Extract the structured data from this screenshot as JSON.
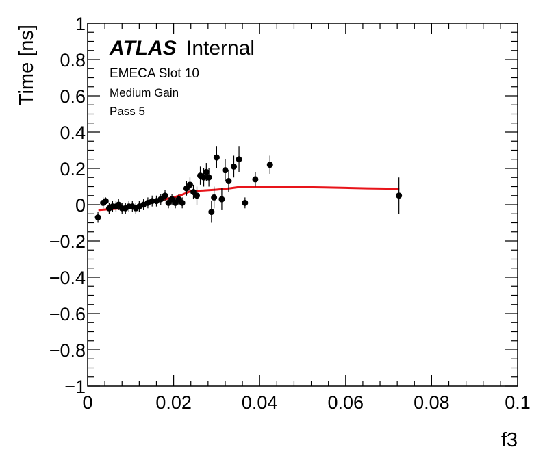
{
  "chart_data": {
    "type": "scatter",
    "title": "",
    "xlabel": "f3",
    "ylabel": "Time [ns]",
    "xlim": [
      0,
      0.1
    ],
    "ylim": [
      -1,
      1
    ],
    "x_ticks": [
      0,
      0.02,
      0.04,
      0.06,
      0.08,
      0.1
    ],
    "x_tick_labels": [
      "0",
      "0.02",
      "0.04",
      "0.06",
      "0.08",
      "0.1"
    ],
    "y_ticks": [
      -1,
      -0.8,
      -0.6,
      -0.4,
      -0.2,
      0,
      0.2,
      0.4,
      0.6,
      0.8,
      1
    ],
    "y_tick_labels": [
      "−1",
      "−0.8",
      "−0.6",
      "−0.4",
      "−0.2",
      "0",
      "0.2",
      "0.4",
      "0.6",
      "0.8",
      "1"
    ],
    "annotations": {
      "experiment": "ATLAS",
      "status": "Internal",
      "line1": "EMECA Slot 10",
      "line2": "Medium Gain",
      "line3": "Pass 5"
    },
    "colors": {
      "points": "#000000",
      "fit": "#e8141a",
      "frame": "#000000"
    },
    "series": [
      {
        "kind": "points_with_errors",
        "points": [
          {
            "x": 0.0024,
            "y": -0.07,
            "err": 0.03
          },
          {
            "x": 0.0036,
            "y": 0.01,
            "err": 0.03
          },
          {
            "x": 0.0042,
            "y": 0.02,
            "err": 0.02
          },
          {
            "x": 0.005,
            "y": -0.02,
            "err": 0.03
          },
          {
            "x": 0.0058,
            "y": -0.01,
            "err": 0.03
          },
          {
            "x": 0.0066,
            "y": -0.01,
            "err": 0.03
          },
          {
            "x": 0.0072,
            "y": 0.0,
            "err": 0.03
          },
          {
            "x": 0.008,
            "y": -0.02,
            "err": 0.03
          },
          {
            "x": 0.0088,
            "y": -0.02,
            "err": 0.03
          },
          {
            "x": 0.0096,
            "y": -0.01,
            "err": 0.03
          },
          {
            "x": 0.0104,
            "y": -0.01,
            "err": 0.03
          },
          {
            "x": 0.0112,
            "y": -0.02,
            "err": 0.03
          },
          {
            "x": 0.012,
            "y": -0.01,
            "err": 0.03
          },
          {
            "x": 0.013,
            "y": 0.0,
            "err": 0.03
          },
          {
            "x": 0.014,
            "y": 0.01,
            "err": 0.03
          },
          {
            "x": 0.015,
            "y": 0.02,
            "err": 0.03
          },
          {
            "x": 0.016,
            "y": 0.02,
            "err": 0.03
          },
          {
            "x": 0.017,
            "y": 0.03,
            "err": 0.03
          },
          {
            "x": 0.018,
            "y": 0.05,
            "err": 0.03
          },
          {
            "x": 0.0188,
            "y": 0.01,
            "err": 0.03
          },
          {
            "x": 0.0196,
            "y": 0.03,
            "err": 0.03
          },
          {
            "x": 0.0204,
            "y": 0.01,
            "err": 0.03
          },
          {
            "x": 0.0212,
            "y": 0.03,
            "err": 0.03
          },
          {
            "x": 0.022,
            "y": 0.01,
            "err": 0.03
          },
          {
            "x": 0.023,
            "y": 0.09,
            "err": 0.04
          },
          {
            "x": 0.0238,
            "y": 0.11,
            "err": 0.04
          },
          {
            "x": 0.0246,
            "y": 0.07,
            "err": 0.04
          },
          {
            "x": 0.0254,
            "y": 0.05,
            "err": 0.05
          },
          {
            "x": 0.0262,
            "y": 0.16,
            "err": 0.05
          },
          {
            "x": 0.027,
            "y": 0.15,
            "err": 0.05
          },
          {
            "x": 0.0276,
            "y": 0.18,
            "err": 0.05
          },
          {
            "x": 0.0282,
            "y": 0.15,
            "err": 0.05
          },
          {
            "x": 0.0288,
            "y": -0.04,
            "err": 0.06
          },
          {
            "x": 0.0294,
            "y": 0.04,
            "err": 0.06
          },
          {
            "x": 0.03,
            "y": 0.26,
            "err": 0.06
          },
          {
            "x": 0.0312,
            "y": 0.03,
            "err": 0.06
          },
          {
            "x": 0.032,
            "y": 0.19,
            "err": 0.06
          },
          {
            "x": 0.0328,
            "y": 0.13,
            "err": 0.06
          },
          {
            "x": 0.034,
            "y": 0.21,
            "err": 0.06
          },
          {
            "x": 0.0352,
            "y": 0.25,
            "err": 0.07
          },
          {
            "x": 0.0366,
            "y": 0.01,
            "err": 0.03
          },
          {
            "x": 0.039,
            "y": 0.14,
            "err": 0.04
          },
          {
            "x": 0.0424,
            "y": 0.22,
            "err": 0.05
          },
          {
            "x": 0.0724,
            "y": 0.05,
            "err": 0.1
          }
        ]
      },
      {
        "kind": "fit_curve",
        "points": [
          {
            "x": 0.0025,
            "y": -0.03
          },
          {
            "x": 0.005,
            "y": -0.025
          },
          {
            "x": 0.008,
            "y": -0.02
          },
          {
            "x": 0.011,
            "y": -0.015
          },
          {
            "x": 0.014,
            "y": 0.005
          },
          {
            "x": 0.017,
            "y": 0.025
          },
          {
            "x": 0.02,
            "y": 0.04
          },
          {
            "x": 0.022,
            "y": 0.055
          },
          {
            "x": 0.024,
            "y": 0.075
          },
          {
            "x": 0.027,
            "y": 0.078
          },
          {
            "x": 0.03,
            "y": 0.083
          },
          {
            "x": 0.033,
            "y": 0.09
          },
          {
            "x": 0.036,
            "y": 0.1
          },
          {
            "x": 0.04,
            "y": 0.1
          },
          {
            "x": 0.045,
            "y": 0.1
          },
          {
            "x": 0.05,
            "y": 0.097
          },
          {
            "x": 0.055,
            "y": 0.095
          },
          {
            "x": 0.06,
            "y": 0.093
          },
          {
            "x": 0.065,
            "y": 0.09
          },
          {
            "x": 0.0725,
            "y": 0.088
          }
        ]
      }
    ]
  }
}
